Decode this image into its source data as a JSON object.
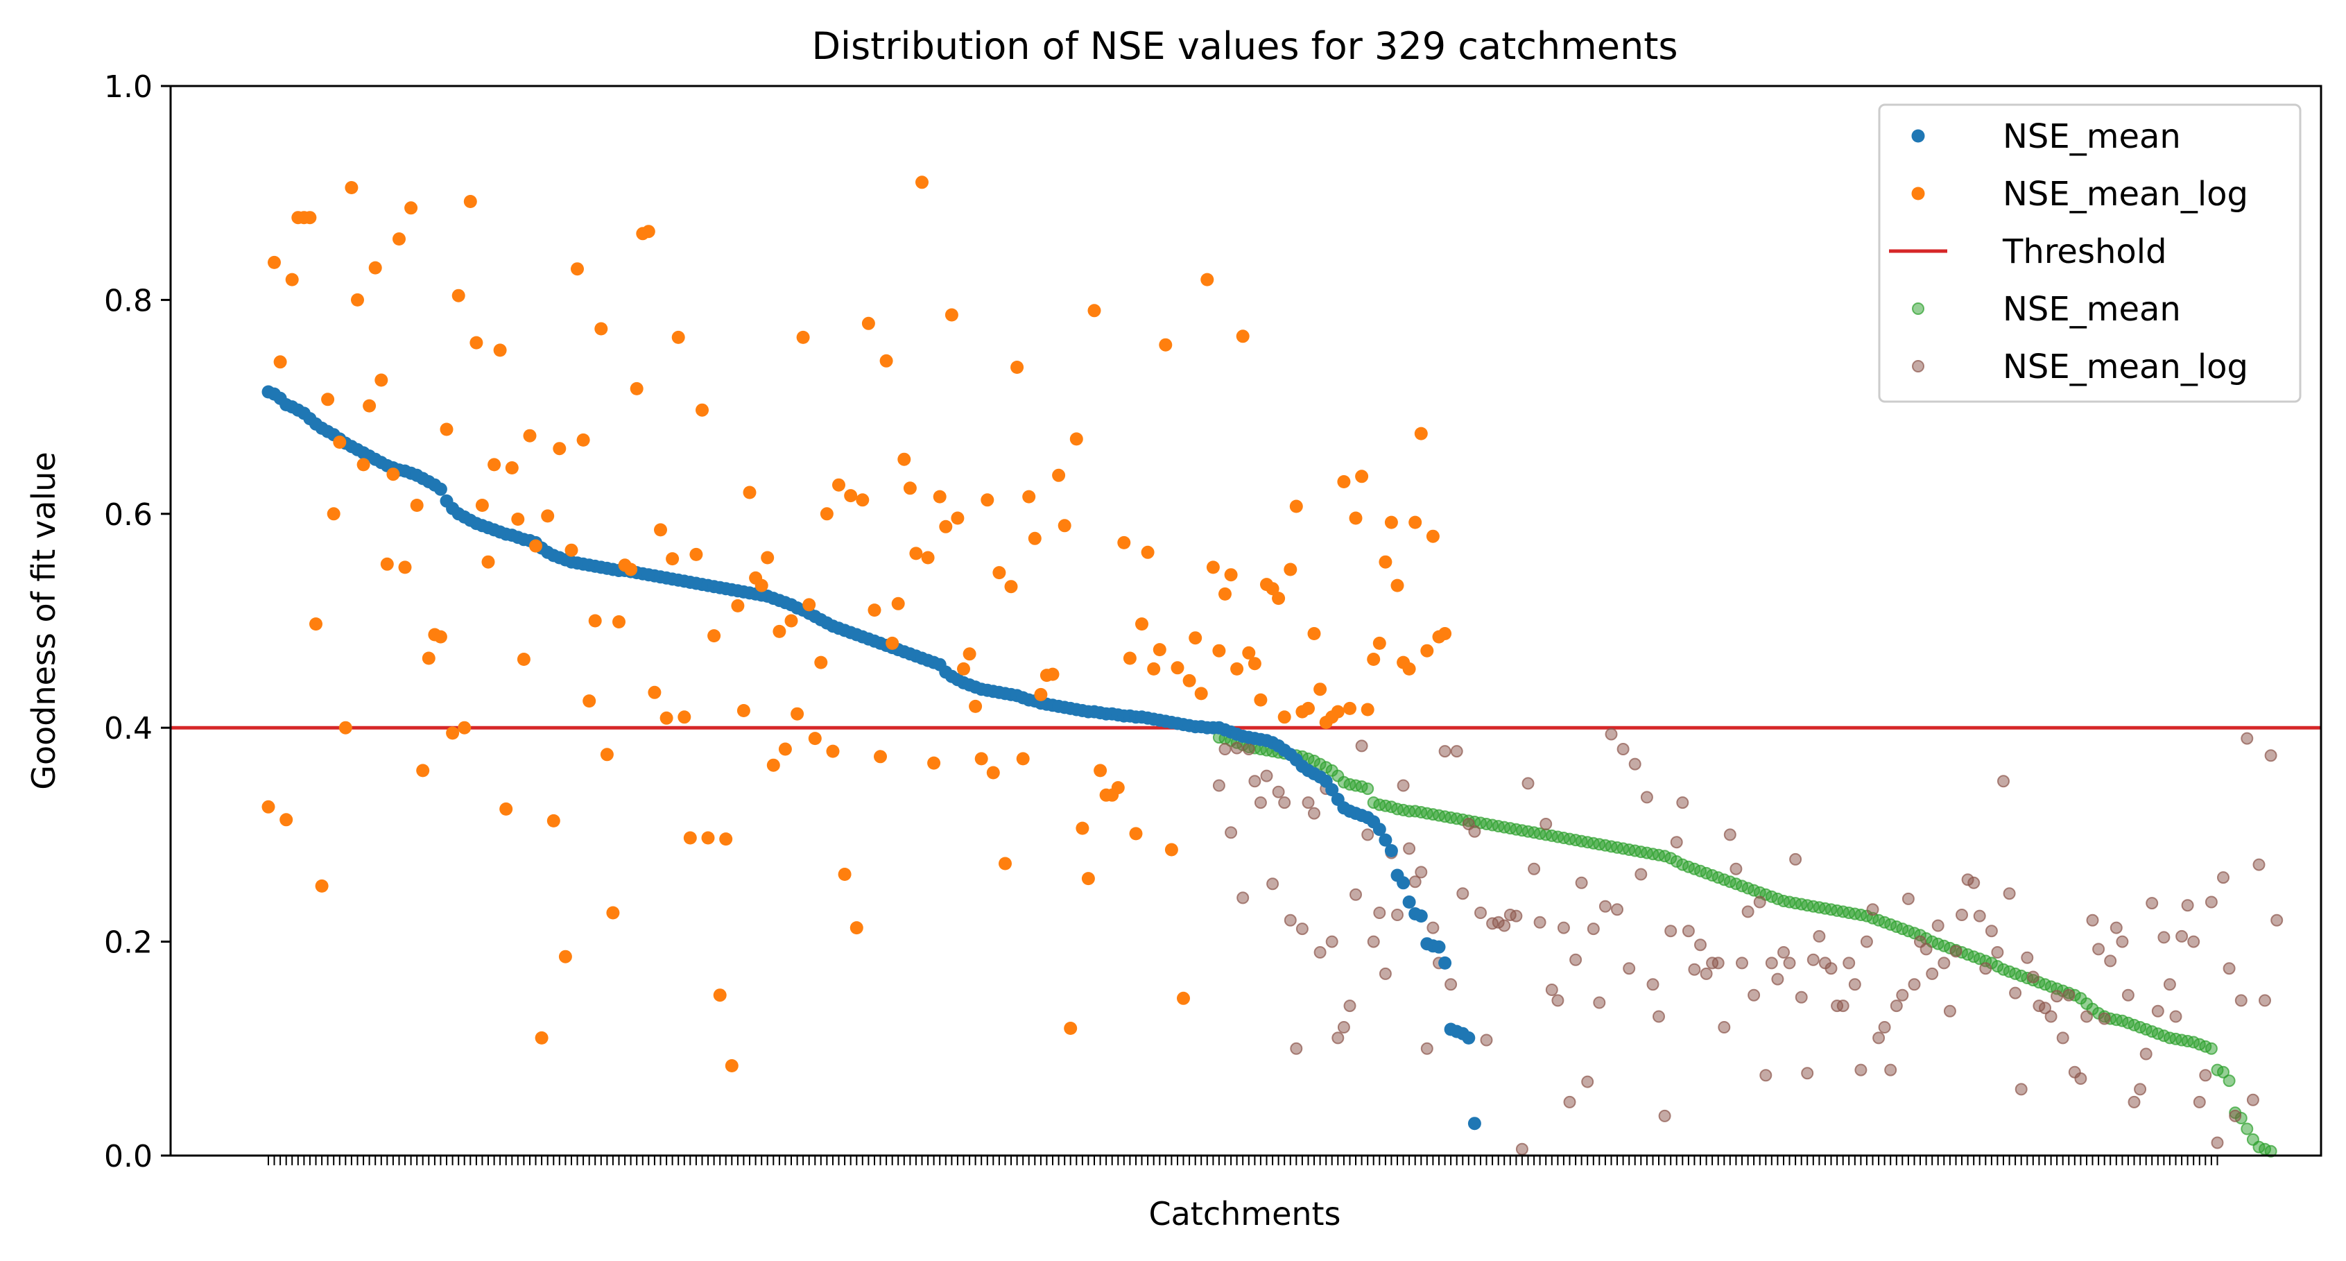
{
  "chart_data": {
    "type": "scatter",
    "title": "Distribution of NSE values for 329 catchments",
    "xlabel": "Catchments",
    "ylabel": "Goodness of fit value",
    "ylim": [
      0,
      1
    ],
    "yticks": [
      "0.0",
      "0.2",
      "0.4",
      "0.6",
      "0.8",
      "1.0"
    ],
    "xlim": [
      -16.45,
      345.45
    ],
    "n_catchments": 329,
    "x_tick_labels": "none",
    "grid": false,
    "legend_placement": "top-right",
    "threshold": {
      "name": "Threshold",
      "value": 0.4,
      "color": "#d62728"
    },
    "colors": {
      "blue": "#1f77b4",
      "orange": "#ff7f0e",
      "green": "#2ca02c",
      "brown": "#8c564b"
    },
    "series": [
      {
        "name": "NSE_mean",
        "marker": "filled",
        "color": "#1f77b4",
        "x_start": 0,
        "description": "values >= threshold, sorted descending (catchments 0-164); values below threshold for catchments 165-203",
        "values": [
          0.714,
          0.712,
          0.708,
          0.702,
          0.7,
          0.697,
          0.694,
          0.689,
          0.684,
          0.68,
          0.677,
          0.674,
          0.67,
          0.666,
          0.663,
          0.66,
          0.657,
          0.654,
          0.651,
          0.648,
          0.645,
          0.643,
          0.641,
          0.64,
          0.638,
          0.636,
          0.633,
          0.63,
          0.627,
          0.623,
          0.612,
          0.605,
          0.6,
          0.597,
          0.594,
          0.591,
          0.589,
          0.587,
          0.585,
          0.583,
          0.581,
          0.58,
          0.578,
          0.576,
          0.575,
          0.573,
          0.568,
          0.564,
          0.561,
          0.559,
          0.557,
          0.555,
          0.554,
          0.553,
          0.552,
          0.551,
          0.55,
          0.549,
          0.548,
          0.547,
          0.547,
          0.546,
          0.545,
          0.544,
          0.543,
          0.542,
          0.541,
          0.54,
          0.539,
          0.538,
          0.537,
          0.536,
          0.535,
          0.534,
          0.533,
          0.532,
          0.531,
          0.53,
          0.529,
          0.528,
          0.527,
          0.526,
          0.525,
          0.524,
          0.523,
          0.521,
          0.519,
          0.517,
          0.515,
          0.512,
          0.51,
          0.507,
          0.504,
          0.501,
          0.498,
          0.495,
          0.493,
          0.491,
          0.489,
          0.487,
          0.485,
          0.483,
          0.481,
          0.479,
          0.477,
          0.475,
          0.473,
          0.471,
          0.469,
          0.467,
          0.465,
          0.463,
          0.461,
          0.459,
          0.452,
          0.448,
          0.445,
          0.442,
          0.44,
          0.438,
          0.436,
          0.435,
          0.434,
          0.433,
          0.432,
          0.431,
          0.43,
          0.428,
          0.426,
          0.425,
          0.423,
          0.422,
          0.421,
          0.42,
          0.419,
          0.418,
          0.417,
          0.416,
          0.415,
          0.415,
          0.414,
          0.413,
          0.413,
          0.412,
          0.411,
          0.411,
          0.41,
          0.41,
          0.409,
          0.408,
          0.407,
          0.406,
          0.405,
          0.404,
          0.403,
          0.402,
          0.401,
          0.401,
          0.4,
          0.4,
          0.4,
          0.398,
          0.396,
          0.394,
          0.392,
          0.391,
          0.39,
          0.389,
          0.388,
          0.386,
          0.383,
          0.379,
          0.375,
          0.37,
          0.364,
          0.36,
          0.357,
          0.354,
          0.35,
          0.342,
          0.333,
          0.325,
          0.322,
          0.32,
          0.318,
          0.316,
          0.312,
          0.305,
          0.295,
          0.285,
          0.262,
          0.255,
          0.237,
          0.226,
          0.224,
          0.198,
          0.196,
          0.195,
          0.18,
          0.118,
          0.116,
          0.114,
          0.11,
          0.03
        ]
      },
      {
        "name": "NSE_mean_log",
        "marker": "filled",
        "color": "#ff7f0e",
        "x_start": 0,
        "values": [
          0.326,
          0.835,
          0.742,
          0.314,
          0.819,
          0.877,
          0.877,
          0.877,
          0.497,
          0.252,
          0.707,
          0.6,
          0.667,
          0.4,
          0.905,
          0.8,
          0.646,
          0.701,
          0.83,
          0.725,
          0.553,
          0.637,
          0.857,
          0.55,
          0.886,
          0.608,
          0.36,
          0.465,
          0.487,
          0.485,
          0.679,
          0.395,
          0.804,
          0.4,
          0.892,
          0.76,
          0.608,
          0.555,
          0.646,
          0.753,
          0.324,
          0.643,
          0.595,
          0.464,
          0.673,
          0.57,
          0.11,
          0.598,
          0.313,
          0.661,
          0.186,
          0.566,
          0.829,
          0.669,
          0.425,
          0.5,
          0.773,
          0.375,
          0.227,
          0.499,
          0.552,
          0.548,
          0.717,
          0.862,
          0.864,
          0.433,
          0.585,
          0.409,
          0.558,
          0.765,
          0.41,
          0.297,
          0.562,
          0.697,
          0.297,
          0.486,
          0.15,
          0.296,
          0.084,
          0.514,
          0.416,
          0.62,
          0.54,
          0.533,
          0.559,
          0.365,
          0.49,
          0.38,
          0.5,
          0.413,
          0.765,
          0.515,
          0.39,
          0.461,
          0.6,
          0.378,
          0.627,
          0.263,
          0.617,
          0.213,
          0.613,
          0.778,
          0.51,
          0.373,
          0.743,
          0.479,
          0.516,
          0.651,
          0.624,
          0.563,
          0.91,
          0.559,
          0.367,
          0.616,
          0.588,
          0.786,
          0.596,
          0.455,
          0.469,
          0.42,
          0.371,
          0.613,
          0.358,
          0.545,
          0.273,
          0.532,
          0.737,
          0.371,
          0.616,
          0.577,
          0.431,
          0.449,
          0.45,
          0.636,
          0.589,
          0.119,
          0.67,
          0.306,
          0.259,
          0.79,
          0.36,
          0.337,
          0.337,
          0.344,
          0.573,
          0.465,
          0.301,
          0.497,
          0.564,
          0.455,
          0.473,
          0.758,
          0.286,
          0.456,
          0.147,
          0.444,
          0.484,
          0.432,
          0.819,
          0.55,
          0.472,
          0.525,
          0.543,
          0.455,
          0.766,
          0.47,
          0.46,
          0.426,
          0.534,
          0.53,
          0.521,
          0.41,
          0.548,
          0.607,
          0.415,
          0.418,
          0.488,
          0.436,
          0.405,
          0.41,
          0.415,
          0.63,
          0.418,
          0.596,
          0.635,
          0.417,
          0.464,
          0.479,
          0.555,
          0.592,
          0.533,
          0.461,
          0.455,
          0.592,
          0.675,
          0.472,
          0.579,
          0.485,
          0.488
        ]
      },
      {
        "name": "Threshold",
        "type": "line",
        "color": "#d62728",
        "y": 0.4
      },
      {
        "name": "NSE_mean",
        "marker": "faint",
        "color": "#2ca02c",
        "x_start": 160,
        "values": [
          0.391,
          0.39,
          0.388,
          0.386,
          0.384,
          0.382,
          0.381,
          0.38,
          0.379,
          0.378,
          0.377,
          0.376,
          0.375,
          0.374,
          0.373,
          0.371,
          0.369,
          0.366,
          0.363,
          0.36,
          0.355,
          0.349,
          0.347,
          0.346,
          0.345,
          0.343,
          0.33,
          0.328,
          0.327,
          0.326,
          0.324,
          0.323,
          0.322,
          0.322,
          0.321,
          0.32,
          0.319,
          0.318,
          0.317,
          0.316,
          0.315,
          0.314,
          0.313,
          0.312,
          0.311,
          0.31,
          0.309,
          0.308,
          0.307,
          0.306,
          0.305,
          0.304,
          0.303,
          0.302,
          0.301,
          0.3,
          0.299,
          0.298,
          0.297,
          0.296,
          0.295,
          0.294,
          0.293,
          0.292,
          0.291,
          0.29,
          0.289,
          0.288,
          0.287,
          0.286,
          0.285,
          0.284,
          0.283,
          0.282,
          0.281,
          0.28,
          0.278,
          0.275,
          0.272,
          0.27,
          0.268,
          0.266,
          0.264,
          0.262,
          0.26,
          0.258,
          0.256,
          0.254,
          0.252,
          0.25,
          0.248,
          0.246,
          0.244,
          0.242,
          0.24,
          0.238,
          0.237,
          0.236,
          0.235,
          0.234,
          0.233,
          0.232,
          0.231,
          0.23,
          0.229,
          0.228,
          0.227,
          0.226,
          0.225,
          0.224,
          0.222,
          0.22,
          0.218,
          0.216,
          0.214,
          0.212,
          0.21,
          0.208,
          0.206,
          0.203,
          0.2,
          0.198,
          0.196,
          0.194,
          0.192,
          0.19,
          0.188,
          0.186,
          0.184,
          0.182,
          0.18,
          0.177,
          0.174,
          0.172,
          0.17,
          0.168,
          0.166,
          0.164,
          0.162,
          0.16,
          0.158,
          0.156,
          0.154,
          0.152,
          0.15,
          0.147,
          0.142,
          0.137,
          0.133,
          0.13,
          0.128,
          0.127,
          0.126,
          0.124,
          0.122,
          0.12,
          0.118,
          0.116,
          0.114,
          0.112,
          0.11,
          0.109,
          0.108,
          0.107,
          0.106,
          0.104,
          0.102,
          0.1,
          0.08,
          0.078,
          0.07,
          0.04,
          0.035,
          0.025,
          0.015,
          0.008,
          0.006,
          0.004
        ]
      },
      {
        "name": "NSE_mean_log",
        "marker": "faint",
        "color": "#8c564b",
        "x_start": 160,
        "values": [
          0.346,
          0.38,
          0.302,
          0.381,
          0.241,
          0.38,
          0.35,
          0.33,
          0.355,
          0.254,
          0.34,
          0.33,
          0.22,
          0.1,
          0.212,
          0.33,
          0.32,
          0.19,
          0.343,
          0.2,
          0.11,
          0.12,
          0.14,
          0.244,
          0.383,
          0.3,
          0.2,
          0.227,
          0.17,
          0.283,
          0.225,
          0.346,
          0.287,
          0.256,
          0.265,
          0.1,
          0.213,
          0.18,
          0.378,
          0.16,
          0.378,
          0.245,
          0.31,
          0.303,
          0.227,
          0.108,
          0.217,
          0.218,
          0.215,
          0.225,
          0.224,
          0.006,
          0.348,
          0.268,
          0.218,
          0.31,
          0.155,
          0.145,
          0.213,
          0.05,
          0.183,
          0.255,
          0.069,
          0.212,
          0.143,
          0.233,
          0.394,
          0.23,
          0.38,
          0.175,
          0.366,
          0.263,
          0.335,
          0.16,
          0.13,
          0.037,
          0.21,
          0.293,
          0.33,
          0.21,
          0.174,
          0.197,
          0.17,
          0.18,
          0.18,
          0.12,
          0.3,
          0.268,
          0.18,
          0.228,
          0.15,
          0.237,
          0.075,
          0.18,
          0.165,
          0.19,
          0.18,
          0.277,
          0.148,
          0.077,
          0.183,
          0.205,
          0.18,
          0.175,
          0.14,
          0.14,
          0.18,
          0.16,
          0.08,
          0.2,
          0.23,
          0.11,
          0.12,
          0.08,
          0.14,
          0.15,
          0.24,
          0.16,
          0.2,
          0.193,
          0.17,
          0.215,
          0.18,
          0.135,
          0.191,
          0.225,
          0.258,
          0.255,
          0.224,
          0.175,
          0.21,
          0.19,
          0.35,
          0.245,
          0.152,
          0.062,
          0.185,
          0.167,
          0.14,
          0.138,
          0.13,
          0.149,
          0.11,
          0.15,
          0.078,
          0.072,
          0.13,
          0.22,
          0.193,
          0.128,
          0.182,
          0.213,
          0.2,
          0.15,
          0.05,
          0.062,
          0.095,
          0.236,
          0.135,
          0.204,
          0.16,
          0.13,
          0.205,
          0.234,
          0.2,
          0.05,
          0.075,
          0.237,
          0.012,
          0.26,
          0.175,
          0.037,
          0.145,
          0.39,
          0.052,
          0.272,
          0.145,
          0.374,
          0.22
        ]
      }
    ]
  },
  "legend": {
    "entries": [
      {
        "label": "NSE_mean",
        "kind": "dot",
        "color": "#1f77b4"
      },
      {
        "label": "NSE_mean_log",
        "kind": "dot",
        "color": "#ff7f0e"
      },
      {
        "label": "Threshold",
        "kind": "line",
        "color": "#d62728"
      },
      {
        "label": "NSE_mean",
        "kind": "faint-dot",
        "color": "#2ca02c"
      },
      {
        "label": "NSE_mean_log",
        "kind": "faint-dot",
        "color": "#8c564b"
      }
    ]
  }
}
